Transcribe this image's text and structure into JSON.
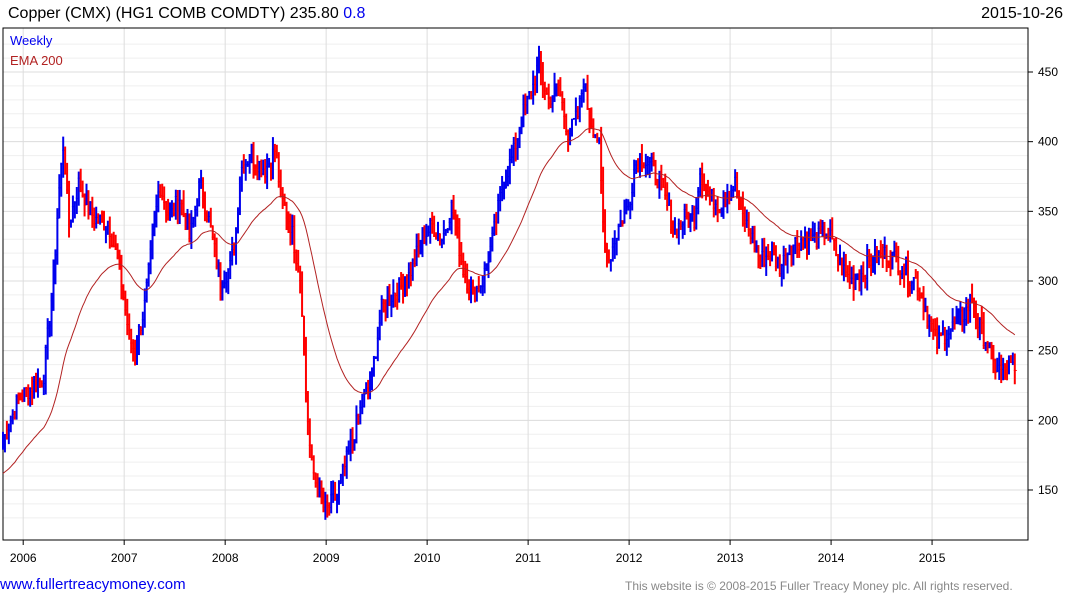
{
  "header": {
    "title": "Copper (CMX) (HG1 COMB COMDTY) 235.80",
    "change": "0.8",
    "date": "2015-10-26"
  },
  "footer": {
    "site": "www.fullertreacymoney.com",
    "copyright": "This website is © 2008-2015 Fuller Treacy Money plc. All rights reserved."
  },
  "colors": {
    "up": "#0000ee",
    "down": "#ff0000",
    "ema": "#b22222",
    "grid": "#dddddd"
  },
  "chart_data": {
    "type": "ohlc",
    "title": "Copper (CMX) (HG1 COMB COMDTY)",
    "legend": [
      {
        "label": "Weekly",
        "color": "#0000ee"
      },
      {
        "label": "EMA 200",
        "color": "#b22222"
      }
    ],
    "legend_position": "top-left",
    "xlim": [
      2005.8,
      2015.95
    ],
    "ylim": [
      122,
      560
    ],
    "y_ticks": [
      150,
      200,
      250,
      300,
      350,
      400,
      450
    ],
    "x_ticks": [
      "2006",
      "2007",
      "2008",
      "2009",
      "2010",
      "2011",
      "2012",
      "2013",
      "2014",
      "2015"
    ],
    "last_close": 235.8,
    "keypoints": [
      [
        2005.8,
        185
      ],
      [
        2005.95,
        215
      ],
      [
        2006.1,
        225
      ],
      [
        2006.2,
        230
      ],
      [
        2006.3,
        300
      ],
      [
        2006.35,
        360
      ],
      [
        2006.4,
        400
      ],
      [
        2006.45,
        340
      ],
      [
        2006.55,
        370
      ],
      [
        2006.7,
        345
      ],
      [
        2006.85,
        340
      ],
      [
        2006.95,
        310
      ],
      [
        2007.05,
        260
      ],
      [
        2007.1,
        250
      ],
      [
        2007.2,
        280
      ],
      [
        2007.3,
        340
      ],
      [
        2007.35,
        370
      ],
      [
        2007.45,
        345
      ],
      [
        2007.55,
        360
      ],
      [
        2007.65,
        330
      ],
      [
        2007.75,
        370
      ],
      [
        2007.85,
        340
      ],
      [
        2007.95,
        300
      ],
      [
        2008.05,
        310
      ],
      [
        2008.1,
        330
      ],
      [
        2008.15,
        380
      ],
      [
        2008.25,
        390
      ],
      [
        2008.4,
        380
      ],
      [
        2008.5,
        395
      ],
      [
        2008.55,
        360
      ],
      [
        2008.65,
        340
      ],
      [
        2008.75,
        300
      ],
      [
        2008.8,
        220
      ],
      [
        2008.85,
        170
      ],
      [
        2008.95,
        140
      ],
      [
        2009.0,
        135
      ],
      [
        2009.1,
        145
      ],
      [
        2009.2,
        170
      ],
      [
        2009.35,
        210
      ],
      [
        2009.45,
        230
      ],
      [
        2009.55,
        280
      ],
      [
        2009.65,
        290
      ],
      [
        2009.8,
        300
      ],
      [
        2009.95,
        330
      ],
      [
        2010.05,
        340
      ],
      [
        2010.15,
        330
      ],
      [
        2010.25,
        355
      ],
      [
        2010.35,
        310
      ],
      [
        2010.45,
        290
      ],
      [
        2010.55,
        300
      ],
      [
        2010.65,
        330
      ],
      [
        2010.75,
        370
      ],
      [
        2010.85,
        390
      ],
      [
        2010.95,
        420
      ],
      [
        2011.05,
        440
      ],
      [
        2011.1,
        455
      ],
      [
        2011.2,
        430
      ],
      [
        2011.3,
        440
      ],
      [
        2011.4,
        405
      ],
      [
        2011.5,
        420
      ],
      [
        2011.55,
        445
      ],
      [
        2011.6,
        420
      ],
      [
        2011.7,
        400
      ],
      [
        2011.75,
        330
      ],
      [
        2011.8,
        315
      ],
      [
        2011.9,
        340
      ],
      [
        2012.0,
        355
      ],
      [
        2012.05,
        380
      ],
      [
        2012.1,
        390
      ],
      [
        2012.25,
        380
      ],
      [
        2012.35,
        360
      ],
      [
        2012.45,
        335
      ],
      [
        2012.55,
        345
      ],
      [
        2012.65,
        345
      ],
      [
        2012.7,
        380
      ],
      [
        2012.8,
        360
      ],
      [
        2012.9,
        355
      ],
      [
        2013.0,
        365
      ],
      [
        2013.05,
        370
      ],
      [
        2013.1,
        350
      ],
      [
        2013.2,
        335
      ],
      [
        2013.3,
        315
      ],
      [
        2013.4,
        320
      ],
      [
        2013.5,
        310
      ],
      [
        2013.6,
        325
      ],
      [
        2013.7,
        330
      ],
      [
        2013.85,
        330
      ],
      [
        2013.95,
        335
      ],
      [
        2014.0,
        330
      ],
      [
        2014.1,
        310
      ],
      [
        2014.2,
        300
      ],
      [
        2014.3,
        305
      ],
      [
        2014.4,
        315
      ],
      [
        2014.55,
        320
      ],
      [
        2014.65,
        315
      ],
      [
        2014.75,
        305
      ],
      [
        2014.85,
        300
      ],
      [
        2014.95,
        275
      ],
      [
        2015.05,
        255
      ],
      [
        2015.1,
        260
      ],
      [
        2015.25,
        270
      ],
      [
        2015.35,
        280
      ],
      [
        2015.4,
        290
      ],
      [
        2015.45,
        270
      ],
      [
        2015.55,
        255
      ],
      [
        2015.6,
        240
      ],
      [
        2015.7,
        235
      ],
      [
        2015.75,
        240
      ],
      [
        2015.82,
        235.8
      ]
    ]
  }
}
